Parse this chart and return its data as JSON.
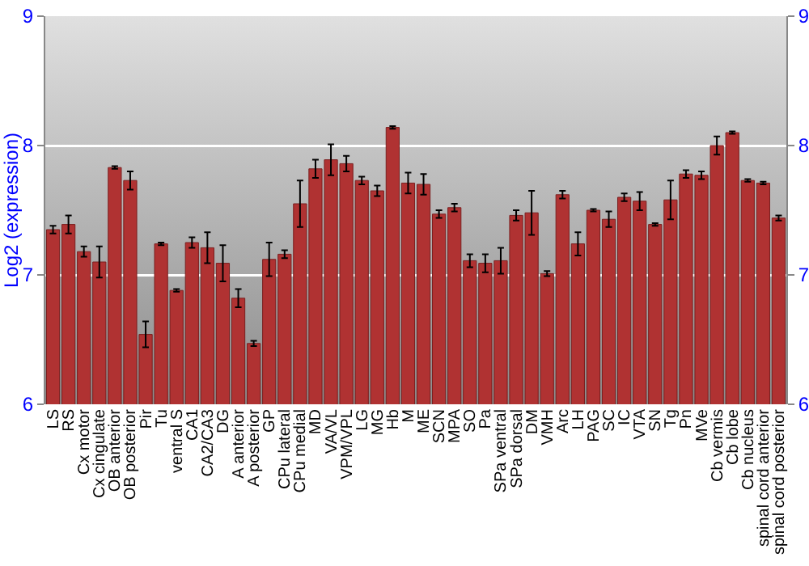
{
  "chart_data": {
    "type": "bar",
    "ylabel": "Log2 (expression)",
    "categories": [
      "LS",
      "RS",
      "Cx motor",
      "Cx cingulate",
      "OB anterior",
      "OB posterior",
      "Pir",
      "Tu",
      "ventral S",
      "CA1",
      "CA2/CA3",
      "DG",
      "A anterior",
      "A posterior",
      "GP",
      "CPu lateral",
      "CPu medial",
      "MD",
      "VA/VL",
      "VPM/VPL",
      "LG",
      "MG",
      "Hb",
      "M",
      "ME",
      "SCN",
      "MPA",
      "SO",
      "Pa",
      "SPa ventral",
      "SPa dorsal",
      "DM",
      "VMH",
      "Arc",
      "LH",
      "PAG",
      "SC",
      "IC",
      "VTA",
      "SN",
      "Tg",
      "Pn",
      "MVe",
      "Cb vermis",
      "Cb lobe",
      "Cb nucleus",
      "spinal cord anterior",
      "spinal cord posterior"
    ],
    "values": [
      7.35,
      7.39,
      7.18,
      7.1,
      7.83,
      7.73,
      6.54,
      7.24,
      6.88,
      7.25,
      7.21,
      7.09,
      6.82,
      6.47,
      7.12,
      7.16,
      7.55,
      7.82,
      7.89,
      7.86,
      7.73,
      7.65,
      8.14,
      7.71,
      7.7,
      7.47,
      7.52,
      7.11,
      7.09,
      7.11,
      7.46,
      7.48,
      7.01,
      7.62,
      7.24,
      7.5,
      7.43,
      7.6,
      7.57,
      7.39,
      7.58,
      7.78,
      7.77,
      8.0,
      8.1,
      7.73,
      7.71,
      7.44
    ],
    "errors": [
      0.03,
      0.07,
      0.04,
      0.12,
      0.01,
      0.07,
      0.1,
      0.01,
      0.01,
      0.04,
      0.12,
      0.14,
      0.07,
      0.02,
      0.13,
      0.03,
      0.18,
      0.07,
      0.12,
      0.06,
      0.03,
      0.04,
      0.01,
      0.08,
      0.08,
      0.03,
      0.03,
      0.05,
      0.07,
      0.1,
      0.04,
      0.17,
      0.02,
      0.03,
      0.09,
      0.01,
      0.06,
      0.03,
      0.07,
      0.01,
      0.15,
      0.03,
      0.03,
      0.07,
      0.01,
      0.01,
      0.01,
      0.02
    ],
    "color": "#b03232",
    "ylim": [
      6,
      9
    ],
    "yticks": [
      6,
      7,
      8,
      9
    ],
    "y2lim": [
      6,
      9
    ],
    "y2ticks": [
      6,
      7,
      8,
      9
    ],
    "grid": "y"
  }
}
